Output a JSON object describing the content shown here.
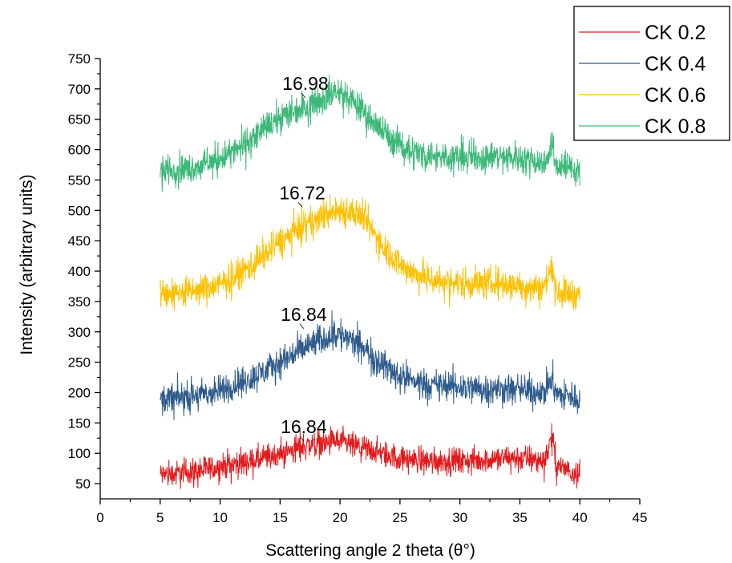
{
  "chart_data": {
    "type": "line",
    "title": "",
    "xlabel": "Scattering angle 2 theta (θ°)",
    "ylabel": "Intensity (arbitrary units)",
    "xlim": [
      0,
      45
    ],
    "ylim": [
      25,
      750
    ],
    "x_ticks": [
      0,
      5,
      10,
      15,
      20,
      25,
      30,
      35,
      40,
      45
    ],
    "y_ticks": [
      50,
      100,
      150,
      200,
      250,
      300,
      350,
      400,
      450,
      500,
      550,
      600,
      650,
      700,
      750
    ],
    "grid": false,
    "legend_position": "top-right",
    "series": [
      {
        "name": "CK 0.2",
        "color": "#e31a1c",
        "x": [
          5,
          6,
          7,
          8,
          9,
          10,
          11,
          12,
          13,
          14,
          15,
          16,
          16.84,
          17,
          18,
          19,
          19.5,
          20,
          21,
          22,
          23,
          24,
          25,
          26,
          27,
          28,
          29,
          30,
          31,
          32,
          33,
          34,
          35,
          36,
          37,
          37.7,
          38,
          39,
          40
        ],
        "y": [
          65,
          66,
          68,
          70,
          74,
          78,
          82,
          85,
          88,
          92,
          98,
          105,
          112,
          113,
          115,
          118,
          120,
          118,
          112,
          108,
          102,
          96,
          92,
          90,
          88,
          88,
          87,
          87,
          88,
          90,
          91,
          92,
          92,
          90,
          86,
          130,
          80,
          73,
          68
        ],
        "noise": 12
      },
      {
        "name": "CK 0.4",
        "color": "#2e5b8c",
        "x": [
          5,
          6,
          7,
          8,
          9,
          10,
          11,
          12,
          13,
          14,
          15,
          16,
          16.84,
          17,
          18,
          19,
          19.5,
          20,
          21,
          22,
          23,
          24,
          25,
          26,
          27,
          28,
          29,
          30,
          31,
          32,
          33,
          34,
          35,
          36,
          37,
          37.7,
          38,
          39,
          40
        ],
        "y": [
          190,
          190,
          192,
          195,
          198,
          203,
          210,
          218,
          228,
          238,
          250,
          262,
          270,
          272,
          282,
          292,
          298,
          295,
          285,
          272,
          255,
          240,
          228,
          220,
          215,
          212,
          210,
          210,
          208,
          206,
          205,
          206,
          205,
          202,
          200,
          225,
          198,
          194,
          190
        ],
        "noise": 14
      },
      {
        "name": "CK 0.6",
        "color": "#ffc000",
        "x": [
          5,
          6,
          7,
          8,
          9,
          10,
          11,
          12,
          13,
          14,
          15,
          16,
          16.72,
          17,
          18,
          19,
          20,
          21,
          22,
          23,
          24,
          25,
          26,
          27,
          28,
          29,
          30,
          31,
          32,
          33,
          34,
          35,
          36,
          37,
          37.7,
          38,
          39,
          40
        ],
        "y": [
          362,
          363,
          365,
          368,
          372,
          378,
          388,
          400,
          415,
          432,
          448,
          462,
          470,
          474,
          485,
          495,
          500,
          498,
          485,
          458,
          432,
          412,
          398,
          390,
          385,
          382,
          380,
          380,
          380,
          380,
          378,
          376,
          374,
          372,
          412,
          368,
          365,
          362
        ],
        "noise": 14
      },
      {
        "name": "CK 0.8",
        "color": "#3cb878",
        "x": [
          5,
          6,
          7,
          8,
          9,
          10,
          11,
          12,
          13,
          14,
          15,
          16,
          16.98,
          17,
          18,
          19,
          19.5,
          20,
          21,
          22,
          23,
          24,
          25,
          26,
          27,
          28,
          29,
          30,
          31,
          32,
          33,
          34,
          35,
          36,
          37,
          37.7,
          38,
          39,
          40
        ],
        "y": [
          565,
          566,
          568,
          572,
          578,
          585,
          595,
          608,
          622,
          638,
          652,
          662,
          668,
          670,
          680,
          690,
          695,
          692,
          680,
          662,
          640,
          622,
          608,
          598,
          592,
          590,
          588,
          588,
          588,
          587,
          588,
          588,
          586,
          583,
          578,
          610,
          575,
          570,
          567
        ],
        "noise": 14
      }
    ],
    "annotations": [
      {
        "text": "16.98",
        "x": 16.98,
        "y": 680
      },
      {
        "text": "16.72",
        "x": 16.72,
        "y": 500
      },
      {
        "text": "16.84",
        "x": 16.84,
        "y": 300
      },
      {
        "text": "16.84",
        "x": 16.84,
        "y": 115
      }
    ]
  }
}
